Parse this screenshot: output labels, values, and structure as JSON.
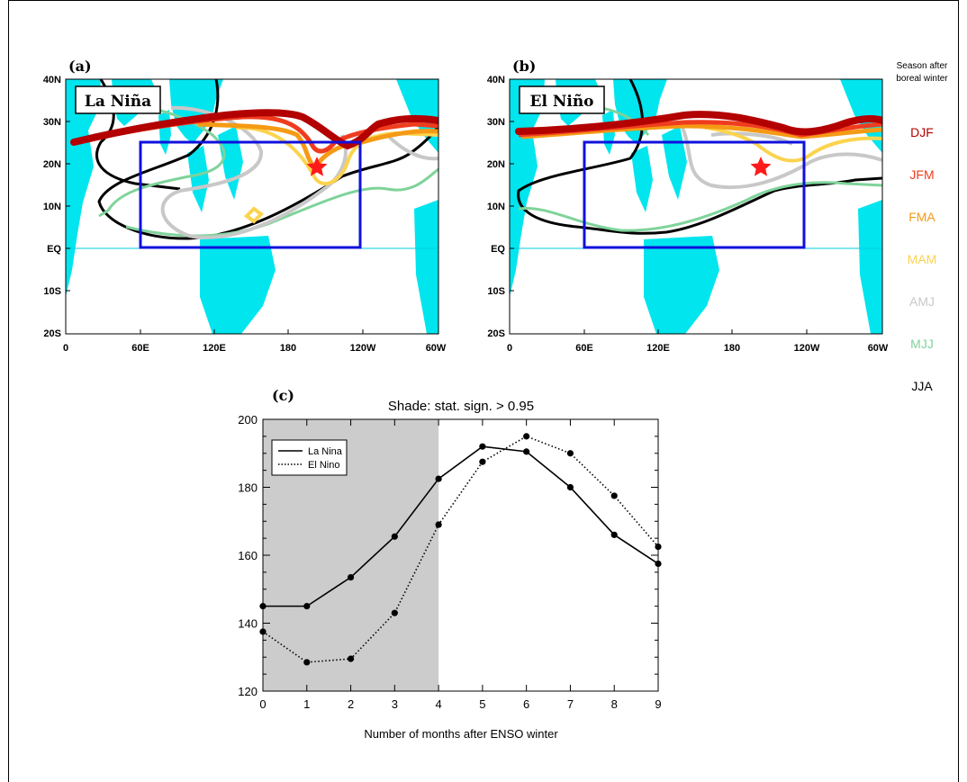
{
  "panel_a": {
    "tag": "(a)",
    "label": "La Niña",
    "x_ticks": [
      "0",
      "60E",
      "120E",
      "180",
      "120W",
      "60W"
    ],
    "y_ticks": [
      "40N",
      "30N",
      "20N",
      "10N",
      "EQ",
      "10S",
      "20S"
    ]
  },
  "panel_b": {
    "tag": "(b)",
    "label": "El Niño",
    "x_ticks": [
      "0",
      "60E",
      "120E",
      "180",
      "120W",
      "60W"
    ],
    "y_ticks": [
      "40N",
      "30N",
      "20N",
      "10N",
      "EQ",
      "10S",
      "20S"
    ]
  },
  "legend_seasons": {
    "title_line1": "Season after",
    "title_line2": "boreal winter",
    "items": [
      {
        "label": "DJF",
        "color": "#b30000"
      },
      {
        "label": "JFM",
        "color": "#f03c1e"
      },
      {
        "label": "FMA",
        "color": "#f59a14"
      },
      {
        "label": "MAM",
        "color": "#fcd34d"
      },
      {
        "label": "AMJ",
        "color": "#c8c8c8"
      },
      {
        "label": "MJJ",
        "color": "#7fd39a"
      },
      {
        "label": "JJA",
        "color": "#000000"
      }
    ]
  },
  "panel_c": {
    "tag": "(c)"
  },
  "chart_data": {
    "type": "line",
    "title": "Shade: stat. sign. > 0.95",
    "xlabel": "Number of months after ENSO winter",
    "ylabel": "",
    "x": [
      0,
      1,
      2,
      3,
      4,
      5,
      6,
      7,
      8,
      9
    ],
    "xlim": [
      0,
      9
    ],
    "ylim": [
      120,
      200
    ],
    "x_ticks": [
      "0",
      "1",
      "2",
      "3",
      "4",
      "5",
      "6",
      "7",
      "8",
      "9"
    ],
    "y_ticks": [
      "120",
      "140",
      "160",
      "180",
      "200"
    ],
    "shade_x_range": [
      0,
      4
    ],
    "legend_position": "top-left",
    "series": [
      {
        "name": "La Nina",
        "style": "solid",
        "values": [
          145,
          145,
          153.5,
          165.5,
          182.5,
          192,
          190.5,
          180,
          166,
          157.5
        ]
      },
      {
        "name": "El Nino",
        "style": "dotted",
        "values": [
          137.5,
          128.5,
          129.5,
          143,
          169,
          187.5,
          195,
          190,
          177.5,
          162.5
        ]
      }
    ]
  }
}
